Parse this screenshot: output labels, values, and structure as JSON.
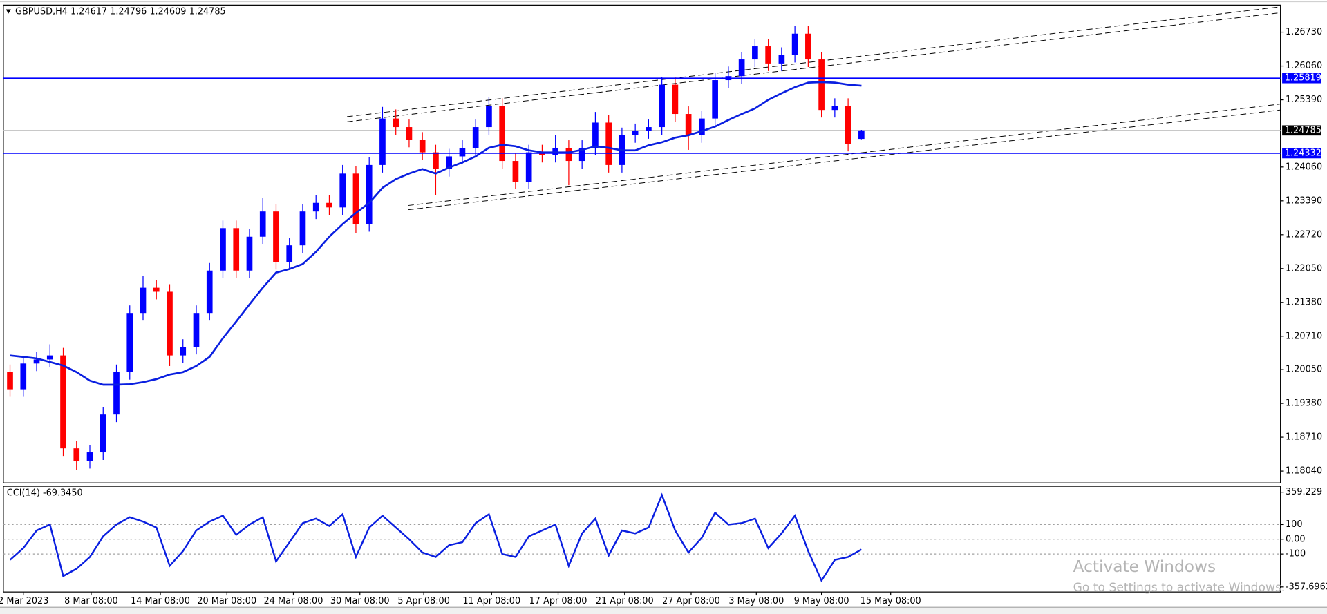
{
  "chart_data": [
    {
      "type": "candlestick",
      "title": "GBPUSD,H4  1.24617 1.24796 1.24609 1.24785",
      "up_color": "#0000ff",
      "down_color": "#ff0000",
      "xlim": [
        0,
        96
      ],
      "xticks": [
        {
          "value": 1.5,
          "label": "2 Mar 2023"
        },
        {
          "value": 6.6,
          "label": "8 Mar 08:00"
        },
        {
          "value": 11.8,
          "label": "14 Mar 08:00"
        },
        {
          "value": 16.8,
          "label": "20 Mar 08:00"
        },
        {
          "value": 21.8,
          "label": "24 Mar 08:00"
        },
        {
          "value": 26.8,
          "label": "30 Mar 08:00"
        },
        {
          "value": 31.6,
          "label": "5 Apr 08:00"
        },
        {
          "value": 36.7,
          "label": "11 Apr 08:00"
        },
        {
          "value": 41.7,
          "label": "17 Apr 08:00"
        },
        {
          "value": 46.7,
          "label": "21 Apr 08:00"
        },
        {
          "value": 51.7,
          "label": "27 Apr 08:00"
        },
        {
          "value": 56.6,
          "label": "3 May 08:00"
        },
        {
          "value": 61.5,
          "label": "9 May 08:00"
        },
        {
          "value": 66.7,
          "label": "15 May 08:00"
        }
      ],
      "ylim": [
        1.17806,
        1.27266
      ],
      "yticks": [
        {
          "value": 1.2673,
          "label": "1.26730"
        },
        {
          "value": 1.2606,
          "label": "1.26060"
        },
        {
          "value": 1.2539,
          "label": "1.25390"
        },
        {
          "value": 1.2406,
          "label": "1.24060"
        },
        {
          "value": 1.2339,
          "label": "1.23390"
        },
        {
          "value": 1.2272,
          "label": "1.22720"
        },
        {
          "value": 1.2205,
          "label": "1.22050"
        },
        {
          "value": 1.2138,
          "label": "1.21380"
        },
        {
          "value": 1.2071,
          "label": "1.20710"
        },
        {
          "value": 1.2005,
          "label": "1.20050"
        },
        {
          "value": 1.1938,
          "label": "1.19380"
        },
        {
          "value": 1.1871,
          "label": "1.18710"
        },
        {
          "value": 1.1804,
          "label": "1.18040"
        }
      ],
      "open": [
        1.2,
        1.1966,
        1.2017,
        1.2025,
        1.2033,
        1.1849,
        1.1824,
        1.1841,
        1.1916,
        1.2,
        1.2117,
        1.2167,
        1.2159,
        1.2033,
        1.205,
        1.2117,
        1.2201,
        1.2285,
        1.2201,
        1.2268,
        1.2318,
        1.2218,
        1.2251,
        1.2318,
        1.2335,
        1.2326,
        1.2393,
        1.2293,
        1.241,
        1.2502,
        1.2485,
        1.246,
        1.2435,
        1.2402,
        1.2427,
        1.2444,
        1.2485,
        1.2527,
        1.2418,
        1.2377,
        1.2435,
        1.243,
        1.2444,
        1.2418,
        1.2444,
        1.2494,
        1.241,
        1.2469,
        1.2477,
        1.2485,
        1.2569,
        1.2511,
        1.2469,
        1.2502,
        1.2578,
        1.2586,
        1.2619,
        1.2645,
        1.2611,
        1.2628,
        1.267,
        1.2619,
        1.2519,
        1.2527,
        1.24617
      ],
      "high": [
        1.2015,
        1.2032,
        1.204,
        1.2055,
        1.2048,
        1.1864,
        1.1856,
        1.1931,
        1.2015,
        1.2132,
        1.219,
        1.2182,
        1.2174,
        1.2065,
        1.2132,
        1.2216,
        1.23,
        1.23,
        1.2283,
        1.2345,
        1.2333,
        1.2266,
        1.2333,
        1.235,
        1.235,
        1.241,
        1.2408,
        1.2425,
        1.2525,
        1.252,
        1.25,
        1.2475,
        1.245,
        1.2442,
        1.2459,
        1.25,
        1.2545,
        1.2542,
        1.2433,
        1.245,
        1.245,
        1.247,
        1.2459,
        1.2459,
        1.2515,
        1.2509,
        1.2484,
        1.2492,
        1.25,
        1.2584,
        1.2584,
        1.2526,
        1.2517,
        1.2593,
        1.2605,
        1.2634,
        1.266,
        1.266,
        1.2643,
        1.2685,
        1.2685,
        1.2634,
        1.2542,
        1.2542,
        1.24796
      ],
      "low": [
        1.1951,
        1.1951,
        1.2002,
        1.201,
        1.1834,
        1.1806,
        1.1809,
        1.1826,
        1.1901,
        1.1985,
        1.2102,
        1.2144,
        1.2012,
        1.2018,
        1.2035,
        1.2102,
        1.2186,
        1.2186,
        1.2186,
        1.2253,
        1.2203,
        1.2203,
        1.2236,
        1.2303,
        1.2311,
        1.2311,
        1.2275,
        1.2278,
        1.2395,
        1.247,
        1.2445,
        1.242,
        1.235,
        1.2387,
        1.2412,
        1.2429,
        1.247,
        1.2403,
        1.2362,
        1.2362,
        1.2415,
        1.2415,
        1.237,
        1.2403,
        1.2429,
        1.2395,
        1.2395,
        1.2454,
        1.2462,
        1.247,
        1.2496,
        1.244,
        1.2454,
        1.2487,
        1.2563,
        1.2571,
        1.2604,
        1.2596,
        1.2596,
        1.2613,
        1.2604,
        1.2504,
        1.2504,
        1.2437,
        1.24609
      ],
      "close": [
        1.1966,
        1.2017,
        1.2025,
        1.2033,
        1.1849,
        1.1824,
        1.1841,
        1.1916,
        1.2,
        1.2117,
        1.2167,
        1.2159,
        1.2033,
        1.205,
        1.2117,
        1.2201,
        1.2285,
        1.2201,
        1.2268,
        1.2318,
        1.2218,
        1.2251,
        1.2318,
        1.2335,
        1.2326,
        1.2393,
        1.2293,
        1.241,
        1.2502,
        1.2485,
        1.246,
        1.2435,
        1.2402,
        1.2427,
        1.2444,
        1.2485,
        1.2527,
        1.2418,
        1.2377,
        1.2435,
        1.243,
        1.2444,
        1.2418,
        1.2444,
        1.2494,
        1.241,
        1.2469,
        1.2477,
        1.2485,
        1.2569,
        1.2511,
        1.2469,
        1.2502,
        1.2578,
        1.2586,
        1.2619,
        1.2645,
        1.2611,
        1.2628,
        1.267,
        1.2619,
        1.2519,
        1.2527,
        1.2452,
        1.24785
      ],
      "ma": {
        "color": "#0a1fe0",
        "values": [
          1.2033,
          1.203,
          1.2027,
          1.202,
          1.2013,
          1.2,
          1.1983,
          1.1975,
          1.1975,
          1.1976,
          1.198,
          1.1986,
          1.1995,
          1.2,
          1.2012,
          1.203,
          1.2067,
          1.21,
          1.2134,
          1.2167,
          1.2197,
          1.2204,
          1.2214,
          1.2238,
          1.2268,
          1.2293,
          1.2315,
          1.2335,
          1.2365,
          1.2382,
          1.2393,
          1.2402,
          1.2393,
          1.2405,
          1.2415,
          1.2427,
          1.2444,
          1.245,
          1.2447,
          1.2439,
          1.2435,
          1.2435,
          1.2435,
          1.244,
          1.2447,
          1.2444,
          1.2439,
          1.2439,
          1.2449,
          1.2455,
          1.2464,
          1.2469,
          1.2477,
          1.2486,
          1.2499,
          1.2511,
          1.2522,
          1.2539,
          1.2552,
          1.2564,
          1.2573,
          1.2574,
          1.2573,
          1.2569,
          1.2567
        ]
      },
      "hlines": [
        1.25819,
        1.24332
      ],
      "hline_color": "#0000ff",
      "price_line": 1.24785
    },
    {
      "type": "line",
      "title": "CCI(14) -69.3450",
      "color": "#0a1fe0",
      "grid": true,
      "xlim": [
        0,
        96
      ],
      "ylim": [
        -357.6963,
        359.229
      ],
      "yticks": [
        359.229,
        100,
        {
          "value": 0,
          "label": "0.00"
        },
        -100,
        -357.6963
      ],
      "values": [
        -140,
        -60,
        60,
        100,
        -250,
        -200,
        -120,
        20,
        100,
        150,
        120,
        80,
        -180,
        -80,
        60,
        120,
        160,
        30,
        100,
        150,
        -150,
        -20,
        110,
        140,
        90,
        170,
        -120,
        80,
        160,
        80,
        0,
        -90,
        -120,
        -40,
        -20,
        110,
        170,
        -100,
        -120,
        20,
        60,
        100,
        -180,
        40,
        140,
        -110,
        60,
        40,
        80,
        300,
        60,
        -90,
        10,
        180,
        100,
        110,
        140,
        -60,
        40,
        160,
        -80,
        -280,
        -140,
        -120,
        -69.345
      ]
    }
  ],
  "watermark": {
    "title": "Activate Windows",
    "subtitle": "Go to Settings to activate Windows."
  }
}
